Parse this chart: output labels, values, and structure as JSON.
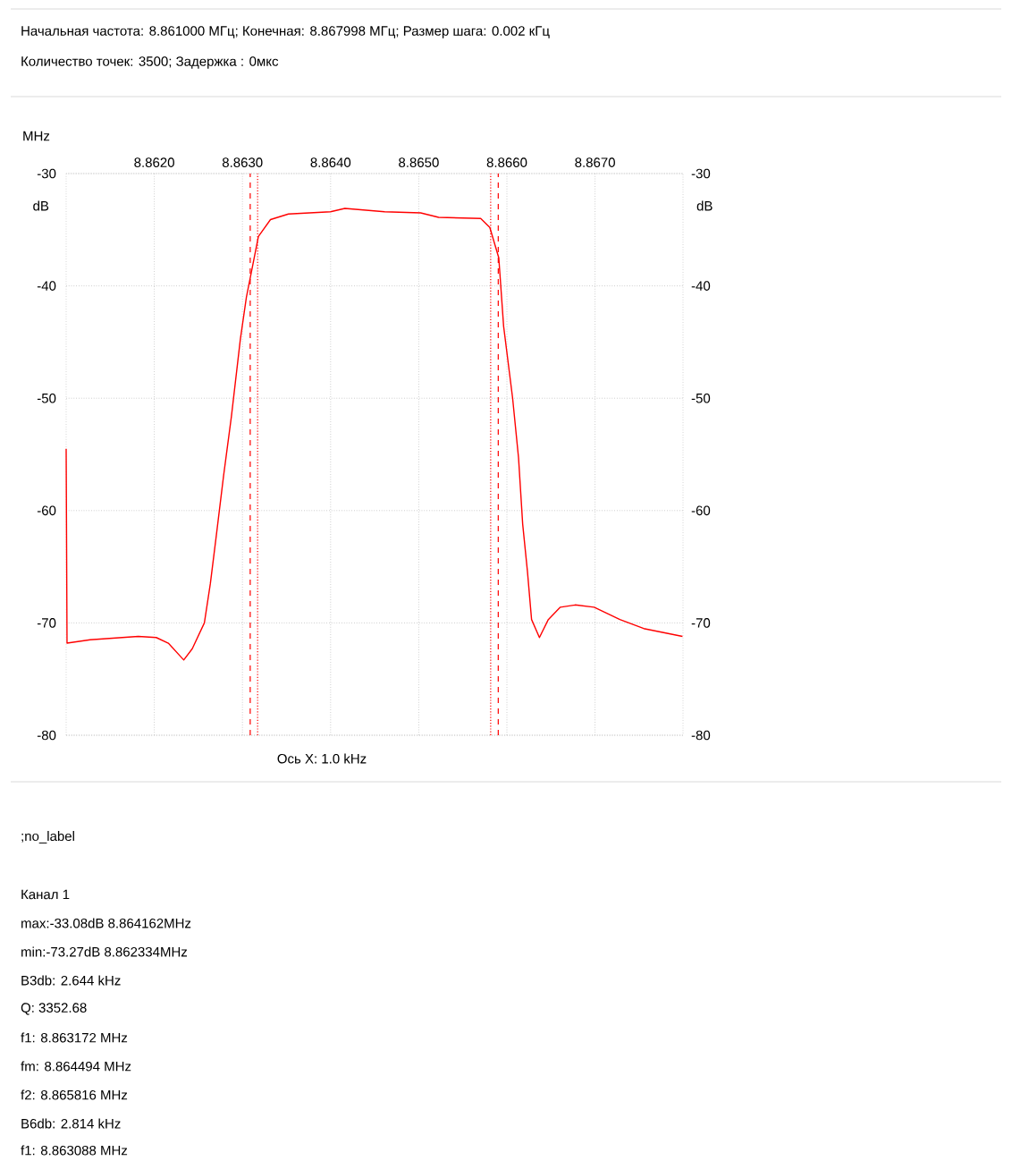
{
  "chart_data": {
    "type": "line",
    "title": "Начальная частота: 8.861000 МГц; Конечная: 8.867998 МГц; Размер шага: 0.002 кГц",
    "subtitle": "Количество точек: 3500; Задержка :   0мкс",
    "xlabel": "MHz",
    "ylabel": "dB",
    "y2label": "dB",
    "xlim": [
      8.861,
      8.867998
    ],
    "xticks": [
      {
        "value": 8.862,
        "label": "8.8620"
      },
      {
        "value": 8.863,
        "label": "8.8630"
      },
      {
        "value": 8.864,
        "label": "8.8640"
      },
      {
        "value": 8.865,
        "label": "8.8650"
      },
      {
        "value": 8.866,
        "label": "8.8660"
      },
      {
        "value": 8.867,
        "label": "8.8670"
      }
    ],
    "ylim": [
      -80,
      -30
    ],
    "yticks": [
      -80,
      -70,
      -60,
      -50,
      -40,
      -30
    ],
    "y2lim": [
      -80,
      -30
    ],
    "y2ticks": [
      -80,
      -70,
      -60,
      -50,
      -40,
      -30
    ],
    "grid": true,
    "series": [
      {
        "color": "#ff0000",
        "line_style": "solid",
        "x": [
          8.861,
          8.86101,
          8.861273,
          8.861818,
          8.862022,
          8.862159,
          8.862334,
          8.862431,
          8.862568,
          8.862636,
          8.862704,
          8.862786,
          8.862875,
          8.862977,
          8.863045,
          8.863113,
          8.863181,
          8.863318,
          8.863522,
          8.863999,
          8.864162,
          8.864613,
          8.865022,
          8.865226,
          8.865703,
          8.865806,
          8.865908,
          8.865963,
          8.866065,
          8.866132,
          8.866179,
          8.866233,
          8.86628,
          8.866369,
          8.86647,
          8.866606,
          8.866774,
          8.86699,
          8.867282,
          8.867552,
          8.867992
        ],
        "values": [
          -54.5,
          -71.8,
          -71.5,
          -71.2,
          -71.3,
          -71.8,
          -73.3,
          -72.3,
          -70,
          -66.5,
          -62.2,
          -56.9,
          -51.6,
          -44.7,
          -41,
          -38.3,
          -35.6,
          -34.1,
          -33.6,
          -33.4,
          -33.1,
          -33.4,
          -33.5,
          -33.9,
          -34,
          -34.8,
          -37.5,
          -43.6,
          -50,
          -55.3,
          -61.2,
          -65.4,
          -69.7,
          -71.3,
          -69.7,
          -68.6,
          -68.4,
          -68.6,
          -69.7,
          -70.5,
          -71.2
        ]
      }
    ],
    "ref_lines": [
      {
        "axis": "x",
        "value": 8.863088,
        "color": "#ff0000",
        "line_style": "dashed"
      },
      {
        "axis": "x",
        "value": 8.863172,
        "color": "#ff0000",
        "line_style": "dotted"
      },
      {
        "axis": "x",
        "value": 8.865816,
        "color": "#ff0000",
        "line_style": "dotted"
      },
      {
        "axis": "x",
        "value": 8.865902,
        "color": "#ff0000",
        "line_style": "dashed"
      }
    ],
    "annotations": [
      "Ось X: 1.0 kHz",
      ";no_label",
      "Канал 1",
      "max:-33.08dB 8.864162MHz",
      "min:-73.27dB 8.862334MHz",
      "B3db: 2.644 kHz",
      "Q: 3352.68",
      "f1: 8.863172 MHz",
      "fm: 8.864494 MHz",
      "f2: 8.865816 MHz",
      "B6db: 2.814 kHz",
      "f1: 8.863088 MHz"
    ]
  }
}
